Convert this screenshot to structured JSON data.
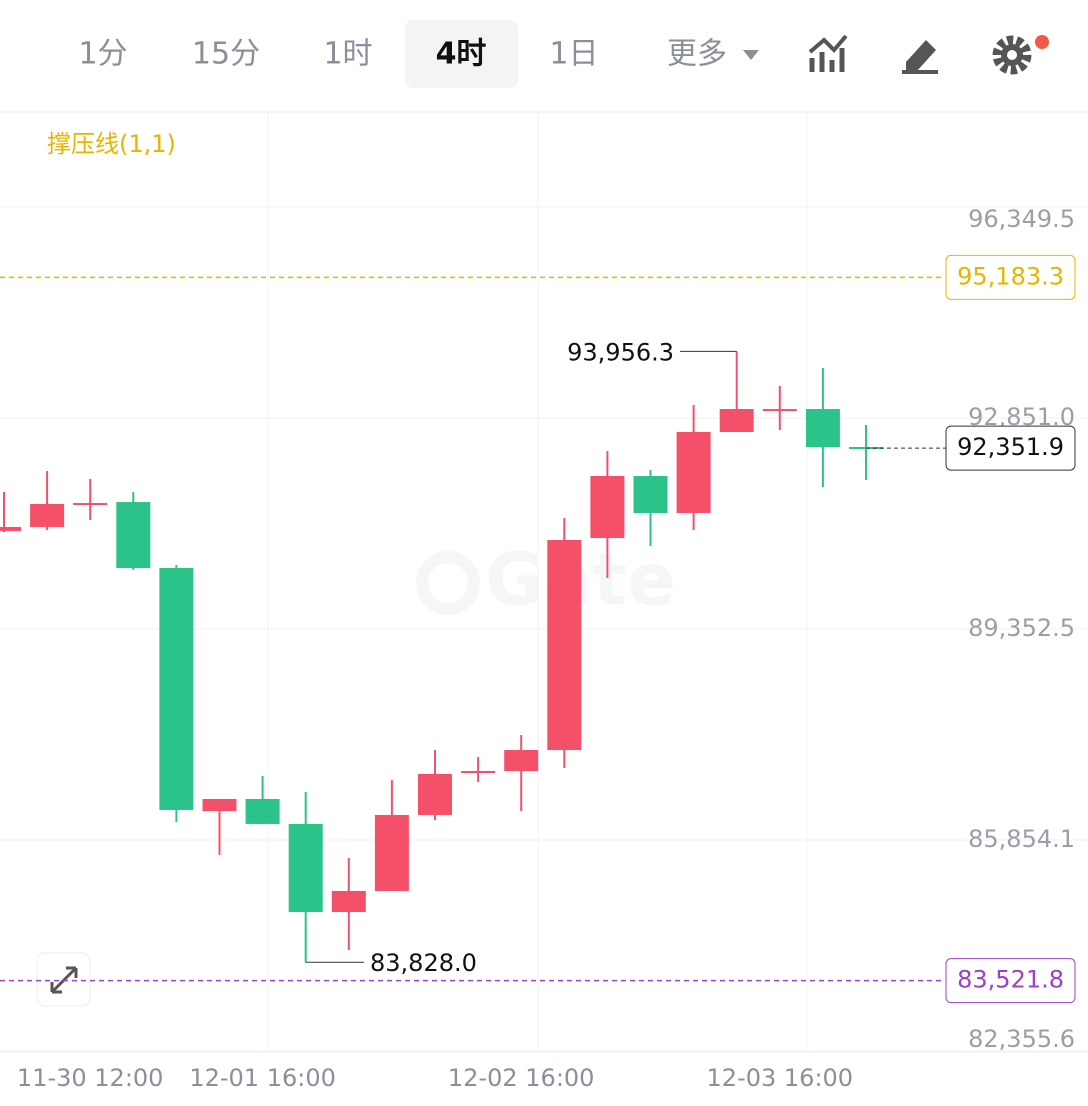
{
  "toolbar": {
    "intervals": [
      "1分",
      "15分",
      "1时",
      "4时",
      "1日",
      "更多"
    ],
    "active_index": 3
  },
  "chart_data": {
    "type": "candlestick",
    "indicator": "撑压线(1,1)",
    "watermark": "Gate",
    "categories": [
      null,
      null,
      "11-30 12:00",
      null,
      null,
      null,
      "12-01 16:00",
      null,
      null,
      null,
      null,
      null,
      "12-02 16:00",
      null,
      null,
      null,
      null,
      null,
      "12-03 16:00",
      null,
      null
    ],
    "open": [
      90978,
      91044,
      91425,
      91458,
      90364,
      86335,
      86534,
      86120,
      84660,
      85009,
      86269,
      86982,
      86998,
      87346,
      90861,
      91889,
      91276,
      92619,
      92984,
      93000,
      92370
    ],
    "high": [
      91624,
      91972,
      91840,
      91624,
      90414,
      86534,
      86916,
      86650,
      85556,
      86849,
      87346,
      87230,
      87595,
      91193,
      92304,
      91989,
      93067,
      93956.3,
      93382,
      93680,
      92735
    ],
    "low": [
      90961,
      90994,
      91160,
      90331,
      86153,
      85606,
      86120,
      83828,
      84030,
      85009,
      86186,
      86816,
      86335,
      87048,
      90198,
      90729,
      90994,
      92619,
      92652,
      91707,
      91823
    ],
    "close": [
      91044,
      91425,
      91441,
      90364,
      86352,
      86534,
      86120,
      84660,
      85009,
      86269,
      86949,
      86998,
      87346,
      90828,
      91889,
      91276,
      92619,
      93000,
      93000,
      92370,
      92351.9
    ],
    "up_color": "#f5506a",
    "down_color": "#2cc38a",
    "ylim": [
      82355.6,
      97908
    ],
    "yticks": [
      {
        "value": 82355.6,
        "label": "82,355.6"
      },
      {
        "value": 85854.1,
        "label": "85,854.1"
      },
      {
        "value": 89352.5,
        "label": "89,352.5"
      },
      {
        "value": 92851.0,
        "label": "92,851.0"
      },
      {
        "value": 96349.5,
        "label": "96,349.5"
      }
    ],
    "grid": true,
    "max_label": "93,956.3",
    "max_index": 17,
    "min_label": "83,828.0",
    "min_index": 7,
    "last_label": "92,351.9",
    "levels": [
      {
        "value": 95183.3,
        "label": "95,183.3",
        "color": "#e8b400"
      },
      {
        "value": 83521.8,
        "label": "83,521.8",
        "color": "#a13ec9"
      }
    ]
  }
}
